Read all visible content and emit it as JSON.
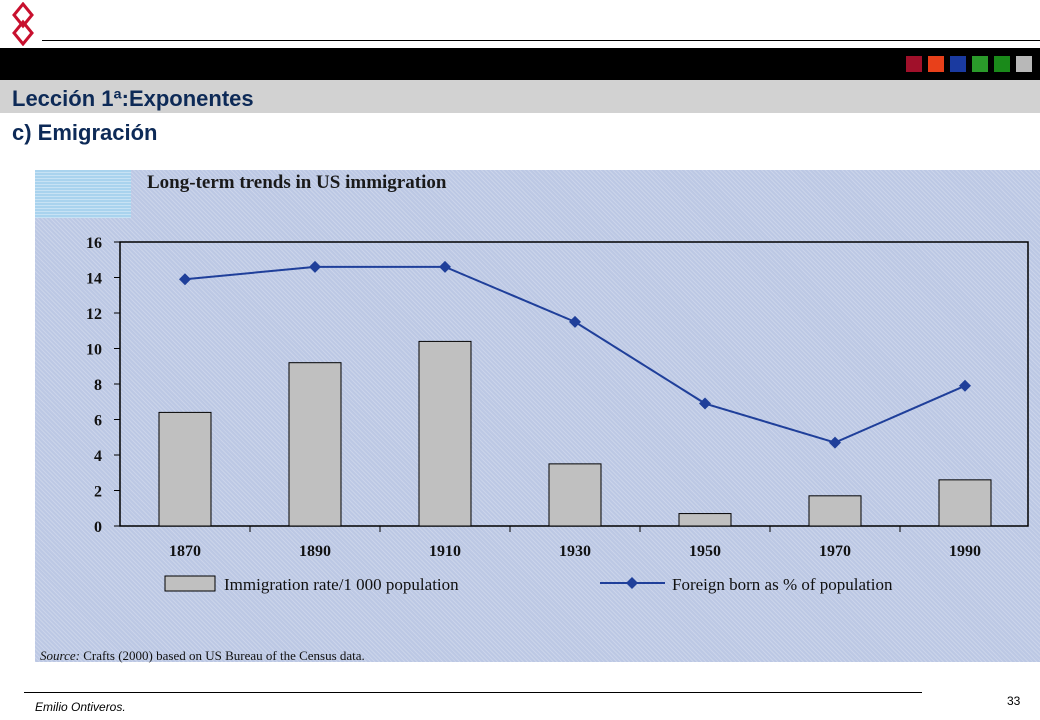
{
  "slide": {
    "title": "Lección 1ª:Exponentes",
    "subtitle": "c) Emigración",
    "author": "Emilio Ontiveros.",
    "page_number": "33",
    "header_squares": [
      "#a0102a",
      "#e8401a",
      "#1a3aa0",
      "#2a9a2a",
      "#1a8a1a",
      "#b8b8b8"
    ],
    "logo_color": "#c8102e"
  },
  "chart_data": {
    "type": "bar",
    "title": "Long-term trends in US immigration",
    "categories": [
      "1870",
      "1890",
      "1910",
      "1930",
      "1950",
      "1970",
      "1990"
    ],
    "ylim": [
      0,
      16
    ],
    "yticks": [
      "0",
      "2",
      "4",
      "6",
      "8",
      "10",
      "12",
      "14",
      "16"
    ],
    "grid": false,
    "legend_position": "bottom",
    "series": [
      {
        "name": "Immigration rate/1 000 population",
        "kind": "bar",
        "color": "#c0c0c0",
        "values": [
          6.4,
          9.2,
          10.4,
          3.5,
          0.7,
          1.7,
          2.6
        ]
      },
      {
        "name": "Foreign born as % of population",
        "kind": "line",
        "color": "#1f3f9a",
        "values": [
          13.9,
          14.6,
          14.6,
          11.5,
          6.9,
          4.7,
          7.9
        ]
      }
    ],
    "source_label": "Source:",
    "source_text": "Crafts (2000) based on US Bureau of the Census data."
  }
}
